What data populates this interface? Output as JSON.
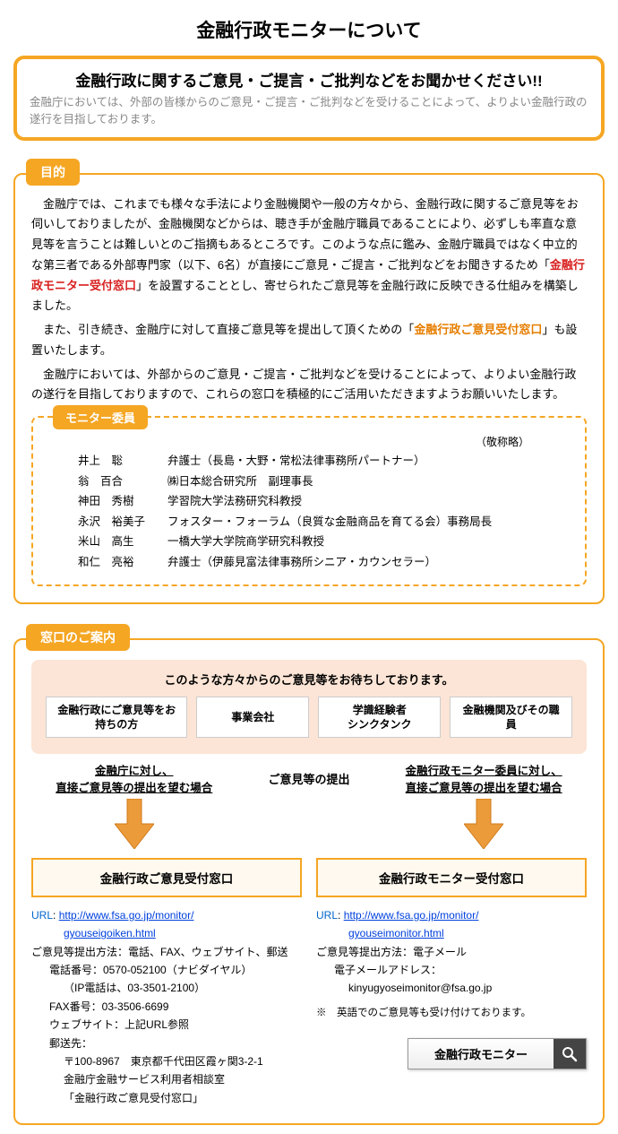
{
  "title": "金融行政モニターについて",
  "intro": {
    "heading": "金融行政に関するご意見・ご提言・ご批判などをお聞かせください!!",
    "text": "金融庁においては、外部の皆様からのご意見・ご提言・ご批判などを受けることによって、よりよい金融行政の遂行を目指しております。"
  },
  "purpose": {
    "tab": "目的",
    "p1a": "金融庁では、これまでも様々な手法により金融機関や一般の方々から、金融行政に関するご意見等をお伺いしておりましたが、金融機関などからは、聴き手が金融庁職員であることにより、必ずしも率直な意見等を言うことは難しいとのご指摘もあるところです。このような点に鑑み、金融庁職員ではなく中立的な第三者である外部専門家（以下、6名）が直接にご意見・ご提言・ご批判などをお聞きするため「",
    "p1red": "金融行政モニター受付窓口",
    "p1b": "」を設置することとし、寄せられたご意見等を金融行政に反映できる仕組みを構築しました。",
    "p2a": "また、引き続き、金融庁に対して直接ご意見等を提出して頂くための「",
    "p2orange": "金融行政ご意見受付窓口",
    "p2b": "」も設置いたします。",
    "p3": "金融庁においては、外部からのご意見・ご提言・ご批判などを受けることによって、よりよい金融行政の遂行を目指しておりますので、これらの窓口を積極的にご活用いただきますようお願いいたします。",
    "membersLabel": "モニター委員",
    "honorific": "（敬称略）",
    "members": [
      {
        "name": "井上　聡",
        "title": "弁護士（長島・大野・常松法律事務所パートナー）"
      },
      {
        "name": "翁　百合",
        "title": "㈱日本総合研究所　副理事長"
      },
      {
        "name": "神田　秀樹",
        "title": "学習院大学法務研究科教授"
      },
      {
        "name": "永沢　裕美子",
        "title": "フォスター・フォーラム（良質な金融商品を育てる会）事務局長"
      },
      {
        "name": "米山　高生",
        "title": "一橋大学大学院商学研究科教授"
      },
      {
        "name": "和仁　亮裕",
        "title": "弁護士（伊藤見富法律事務所シニア・カウンセラー）"
      }
    ]
  },
  "guide": {
    "tab": "窓口のご案内",
    "pinkHeading": "このような方々からのご意見等をお待ちしております。",
    "boxes": {
      "b1": "金融行政にご意見等をお持ちの方",
      "b2": "事業会社",
      "b3": "学識経験者\nシンクタンク",
      "b4": "金融機関及びその職員"
    },
    "flow": {
      "leftLine1": "金融庁に対し、",
      "leftLine2": "直接ご意見等の提出を望む場合",
      "center": "ご意見等の提出",
      "rightLine1": "金融行政モニター委員に対し、",
      "rightLine2": "直接ご意見等の提出を望む場合"
    },
    "left": {
      "title": "金融行政ご意見受付窓口",
      "urlLabel": "URL",
      "url1": "http://www.fsa.go.jp/monitor/",
      "url2": "gyouseigoiken.html",
      "method": "ご意見等提出方法：電話、FAX、ウェブサイト、郵送",
      "tel": "電話番号：0570-052100（ナビダイヤル）",
      "telNote": "（IP電話は、03-3501-2100）",
      "fax": "FAX番号：03-3506-6699",
      "web": "ウェブサイト：上記URL参照",
      "postLabel": "郵送先：",
      "post1": "〒100-8967　東京都千代田区霞ヶ関3-2-1",
      "post2": "金融庁金融サービス利用者相談室",
      "post3": "「金融行政ご意見受付窓口」"
    },
    "right": {
      "title": "金融行政モニター受付窓口",
      "urlLabel": "URL",
      "url1": "http://www.fsa.go.jp/monitor/",
      "url2": "gyouseimonitor.html",
      "method": "ご意見等提出方法：電子メール",
      "emailLabel": "電子メールアドレス：",
      "email": "kinyugyoseimonitor@fsa.go.jp",
      "note": "※　英語でのご意見等も受け付けております。"
    },
    "search": "金融行政モニター"
  },
  "colors": {
    "orange": "#f5a623",
    "red": "#d92020",
    "link": "#0040dd",
    "pinkBg": "#fce5d6"
  }
}
